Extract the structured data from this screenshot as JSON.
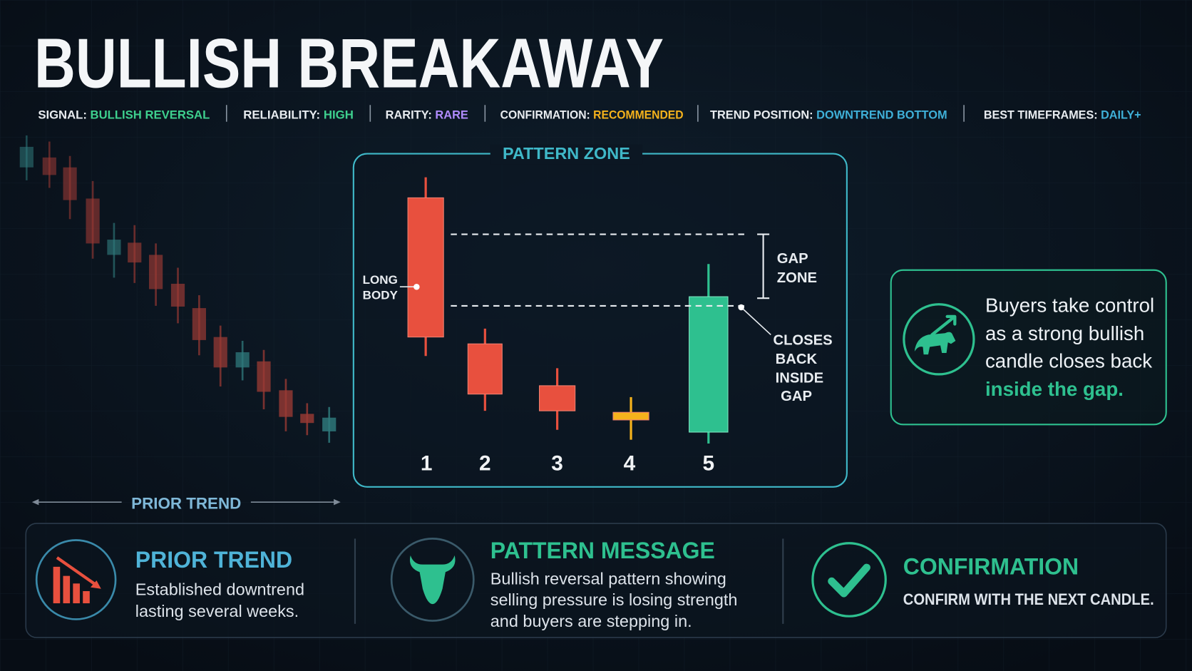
{
  "header": {
    "title": "BULLISH BREAKAWAY",
    "badges": [
      {
        "label": "SIGNAL:",
        "value": "BULLISH REVERSAL"
      },
      {
        "label": "RELIABILITY:",
        "value": "HIGH"
      },
      {
        "label": "RARITY:",
        "value": "RARE"
      },
      {
        "label": "CONFIRMATION:",
        "value": "RECOMMENDED"
      },
      {
        "label": "TREND POSITION:",
        "value": "DOWNTREND BOTTOM"
      },
      {
        "label": "BEST TIMEFRAMES:",
        "value": "DAILY+"
      }
    ]
  },
  "prior_trend_label": "PRIOR TREND",
  "pattern": {
    "title": "PATTERN ZONE",
    "long_body": [
      "LONG",
      "BODY"
    ],
    "gap_zone": [
      "GAP",
      "ZONE"
    ],
    "closes_back": [
      "CLOSES",
      "BACK",
      "INSIDE",
      "GAP"
    ],
    "candle_numbers": [
      "1",
      "2",
      "3",
      "4",
      "5"
    ]
  },
  "callout": {
    "lines": [
      "Buyers take control",
      "as a strong bullish",
      "candle closes back"
    ],
    "highlight": "inside the gap."
  },
  "cards": [
    {
      "title": "PRIOR TREND",
      "lines": [
        "Established downtrend",
        "lasting several weeks."
      ]
    },
    {
      "title": "PATTERN MESSAGE",
      "lines": [
        "Bullish reversal pattern showing",
        "selling pressure is losing strength",
        "and buyers are stepping in."
      ]
    },
    {
      "title": "CONFIRMATION",
      "lines": [
        "CONFIRM WITH THE NEXT CANDLE."
      ]
    }
  ]
}
